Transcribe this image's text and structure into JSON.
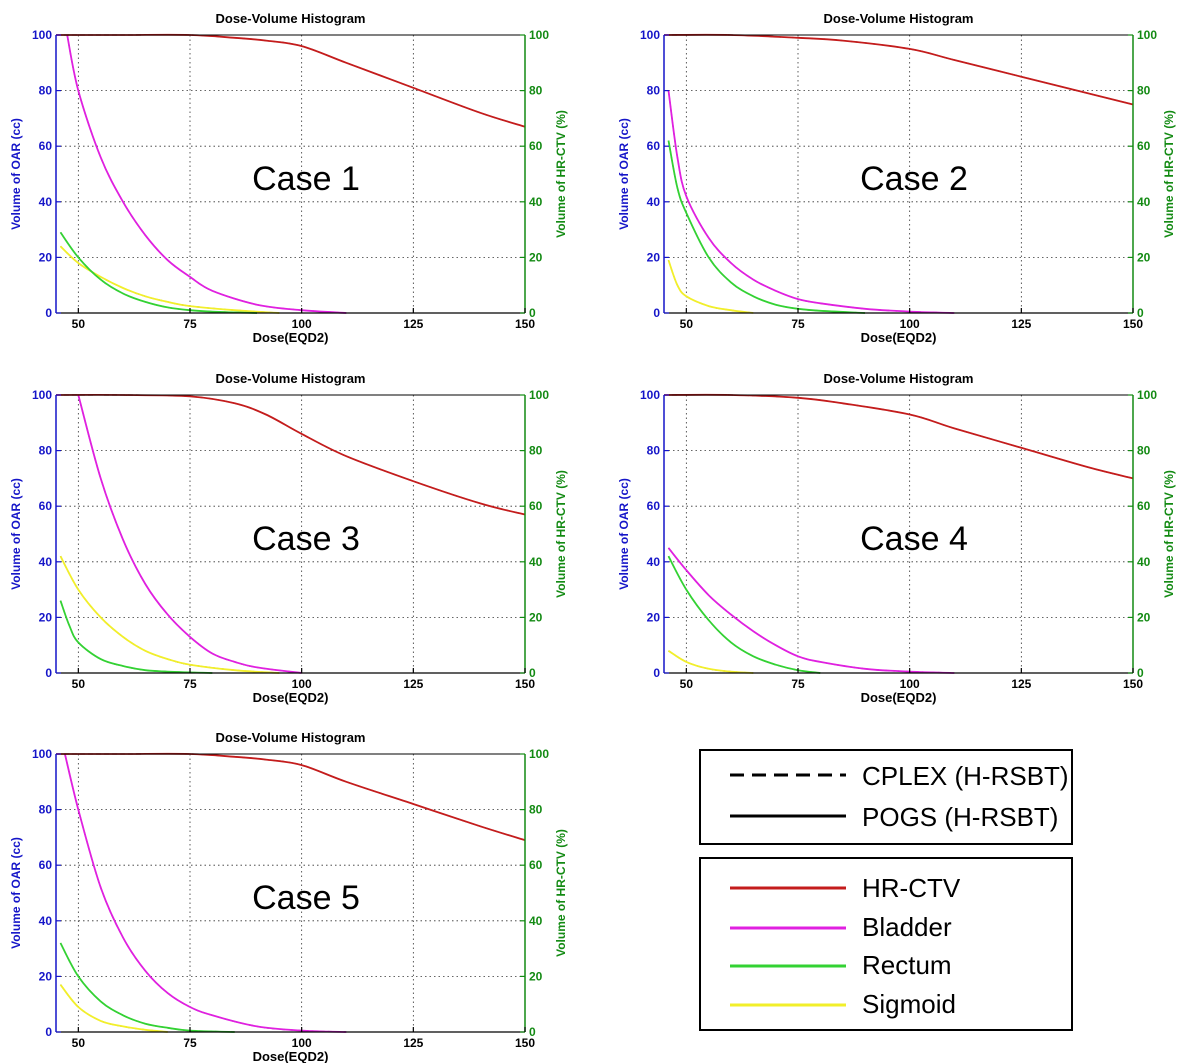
{
  "chart_data": [
    {
      "type": "line",
      "case_label": "Case 1",
      "title": "Dose-Volume Histogram",
      "xlabel": "Dose(EQD2)",
      "ylabel": "Volume of OAR (cc)",
      "ylabel_right": "Volume of HR-CTV (%)",
      "xlim": [
        45,
        150
      ],
      "ylim": [
        0,
        100
      ],
      "ylim_right": [
        0,
        100
      ],
      "xticks": [
        "50",
        "75",
        "100",
        "125",
        "150"
      ],
      "yticks": [
        "0",
        "20",
        "40",
        "60",
        "80",
        "100"
      ],
      "yticks_right": [
        "0",
        "20",
        "40",
        "60",
        "80",
        "100"
      ],
      "grid": true,
      "series": [
        {
          "name": "HR-CTV",
          "axis": "right",
          "x": [
            45,
            60,
            75,
            85,
            92,
            100,
            110,
            125,
            140,
            150
          ],
          "y": [
            100,
            100,
            100,
            99,
            98,
            96,
            90,
            81,
            72,
            67
          ]
        },
        {
          "name": "Bladder",
          "axis": "left",
          "x": [
            47.5,
            50,
            55,
            60,
            65,
            70,
            75,
            80,
            90,
            100,
            110
          ],
          "y": [
            100,
            80,
            56,
            40,
            28,
            19,
            13,
            8,
            3,
            1,
            0
          ]
        },
        {
          "name": "Rectum",
          "axis": "left",
          "x": [
            46,
            50,
            55,
            60,
            65,
            70,
            75,
            80,
            90
          ],
          "y": [
            29,
            20,
            12,
            7,
            4,
            2,
            1,
            0.5,
            0
          ]
        },
        {
          "name": "Sigmoid",
          "axis": "left",
          "x": [
            46,
            50,
            55,
            60,
            65,
            70,
            75,
            85,
            95
          ],
          "y": [
            24,
            18,
            13,
            9,
            6,
            4,
            2.5,
            1,
            0
          ]
        }
      ]
    },
    {
      "type": "line",
      "case_label": "Case 2",
      "title": "Dose-Volume Histogram",
      "xlabel": "Dose(EQD2)",
      "ylabel": "Volume of OAR (cc)",
      "ylabel_right": "Volume of HR-CTV (%)",
      "xlim": [
        45,
        150
      ],
      "ylim": [
        0,
        100
      ],
      "ylim_right": [
        0,
        100
      ],
      "xticks": [
        "50",
        "75",
        "100",
        "125",
        "150"
      ],
      "yticks": [
        "0",
        "20",
        "40",
        "60",
        "80",
        "100"
      ],
      "yticks_right": [
        "0",
        "20",
        "40",
        "60",
        "80",
        "100"
      ],
      "grid": true,
      "series": [
        {
          "name": "HR-CTV",
          "axis": "right",
          "x": [
            45,
            60,
            75,
            85,
            100,
            110,
            125,
            140,
            150
          ],
          "y": [
            100,
            100,
            99,
            98,
            95,
            91,
            85,
            79,
            75
          ]
        },
        {
          "name": "Bladder",
          "axis": "left",
          "x": [
            46,
            48,
            50,
            55,
            60,
            65,
            70,
            75,
            80,
            90,
            100,
            110
          ],
          "y": [
            80,
            56,
            42,
            27,
            18,
            12,
            8,
            5,
            3.5,
            1.5,
            0.5,
            0
          ]
        },
        {
          "name": "Rectum",
          "axis": "left",
          "x": [
            46,
            48,
            50,
            55,
            60,
            65,
            70,
            75,
            80,
            90
          ],
          "y": [
            62,
            45,
            36,
            20,
            11,
            6,
            3,
            1.5,
            0.8,
            0
          ]
        },
        {
          "name": "Sigmoid",
          "axis": "left",
          "x": [
            46,
            48,
            50,
            55,
            60,
            65
          ],
          "y": [
            19,
            10,
            6,
            2.5,
            1,
            0
          ]
        }
      ]
    },
    {
      "type": "line",
      "case_label": "Case 3",
      "title": "Dose-Volume Histogram",
      "xlabel": "Dose(EQD2)",
      "ylabel": "Volume of OAR (cc)",
      "ylabel_right": "Volume of HR-CTV (%)",
      "xlim": [
        45,
        150
      ],
      "ylim": [
        0,
        100
      ],
      "ylim_right": [
        0,
        100
      ],
      "xticks": [
        "50",
        "75",
        "100",
        "125",
        "150"
      ],
      "yticks": [
        "0",
        "20",
        "40",
        "60",
        "80",
        "100"
      ],
      "yticks_right": [
        "0",
        "20",
        "40",
        "60",
        "80",
        "100"
      ],
      "grid": true,
      "series": [
        {
          "name": "HR-CTV",
          "axis": "right",
          "x": [
            45,
            60,
            75,
            85,
            92,
            100,
            110,
            125,
            140,
            150
          ],
          "y": [
            100,
            100,
            99.5,
            97,
            93,
            86,
            78,
            69,
            61,
            57
          ]
        },
        {
          "name": "Bladder",
          "axis": "left",
          "x": [
            50,
            55,
            60,
            65,
            70,
            75,
            80,
            85,
            90,
            100
          ],
          "y": [
            100,
            70,
            48,
            32,
            21,
            13,
            7,
            4,
            2,
            0
          ]
        },
        {
          "name": "Rectum",
          "axis": "left",
          "x": [
            46,
            48,
            50,
            55,
            60,
            65,
            70,
            80
          ],
          "y": [
            26,
            17,
            11,
            5,
            2.5,
            1,
            0.5,
            0
          ]
        },
        {
          "name": "Sigmoid",
          "axis": "left",
          "x": [
            46,
            50,
            55,
            60,
            65,
            70,
            75,
            85,
            95
          ],
          "y": [
            42,
            30,
            20,
            13,
            8,
            5,
            3,
            1,
            0
          ]
        }
      ]
    },
    {
      "type": "line",
      "case_label": "Case 4",
      "title": "Dose-Volume Histogram",
      "xlabel": "Dose(EQD2)",
      "ylabel": "Volume of OAR (cc)",
      "ylabel_right": "Volume of HR-CTV (%)",
      "xlim": [
        45,
        150
      ],
      "ylim": [
        0,
        100
      ],
      "ylim_right": [
        0,
        100
      ],
      "xticks": [
        "50",
        "75",
        "100",
        "125",
        "150"
      ],
      "yticks": [
        "0",
        "20",
        "40",
        "60",
        "80",
        "100"
      ],
      "yticks_right": [
        "0",
        "20",
        "40",
        "60",
        "80",
        "100"
      ],
      "grid": true,
      "series": [
        {
          "name": "HR-CTV",
          "axis": "right",
          "x": [
            45,
            60,
            75,
            85,
            100,
            110,
            125,
            140,
            150
          ],
          "y": [
            100,
            100,
            99,
            97,
            93,
            88,
            81,
            74,
            70
          ]
        },
        {
          "name": "Bladder",
          "axis": "left",
          "x": [
            46,
            50,
            55,
            60,
            65,
            70,
            75,
            80,
            90,
            100,
            110
          ],
          "y": [
            45,
            37,
            28,
            21,
            15,
            10,
            6,
            4,
            1.5,
            0.5,
            0
          ]
        },
        {
          "name": "Rectum",
          "axis": "left",
          "x": [
            46,
            50,
            55,
            60,
            65,
            70,
            75,
            80
          ],
          "y": [
            42,
            30,
            19,
            11,
            6,
            3,
            1,
            0
          ]
        },
        {
          "name": "Sigmoid",
          "axis": "left",
          "x": [
            46,
            50,
            55,
            60,
            65
          ],
          "y": [
            8,
            4,
            1.5,
            0.5,
            0
          ]
        }
      ]
    },
    {
      "type": "line",
      "case_label": "Case 5",
      "title": "Dose-Volume Histogram",
      "xlabel": "Dose(EQD2)",
      "ylabel": "Volume of OAR (cc)",
      "ylabel_right": "Volume of HR-CTV (%)",
      "xlim": [
        45,
        150
      ],
      "ylim": [
        0,
        100
      ],
      "ylim_right": [
        0,
        100
      ],
      "xticks": [
        "50",
        "75",
        "100",
        "125",
        "150"
      ],
      "yticks": [
        "0",
        "20",
        "40",
        "60",
        "80",
        "100"
      ],
      "yticks_right": [
        "0",
        "20",
        "40",
        "60",
        "80",
        "100"
      ],
      "grid": true,
      "series": [
        {
          "name": "HR-CTV",
          "axis": "right",
          "x": [
            45,
            60,
            75,
            85,
            92,
            100,
            110,
            125,
            140,
            150
          ],
          "y": [
            100,
            100,
            100,
            99,
            98,
            96,
            90,
            82,
            74,
            69
          ]
        },
        {
          "name": "Bladder",
          "axis": "left",
          "x": [
            47,
            50,
            55,
            60,
            65,
            70,
            75,
            80,
            90,
            100,
            110
          ],
          "y": [
            100,
            80,
            52,
            34,
            22,
            14,
            9,
            6,
            2,
            0.5,
            0
          ]
        },
        {
          "name": "Rectum",
          "axis": "left",
          "x": [
            46,
            50,
            55,
            60,
            65,
            70,
            75,
            85
          ],
          "y": [
            32,
            20,
            11,
            6,
            3,
            1.5,
            0.5,
            0
          ]
        },
        {
          "name": "Sigmoid",
          "axis": "left",
          "x": [
            46,
            50,
            55,
            60,
            65,
            70
          ],
          "y": [
            17,
            9,
            4,
            2,
            0.8,
            0
          ]
        }
      ]
    }
  ],
  "legend": {
    "methods": [
      {
        "label": "CPLEX (H-RSBT)",
        "style": "dashed"
      },
      {
        "label": "POGS (H-RSBT)",
        "style": "solid"
      }
    ],
    "structures": [
      {
        "label": "HR-CTV",
        "color": "#c41c1c"
      },
      {
        "label": "Bladder",
        "color": "#e020e0"
      },
      {
        "label": "Rectum",
        "color": "#33d233"
      },
      {
        "label": "Sigmoid",
        "color": "#f2ef2a"
      }
    ]
  },
  "colors": {
    "HR-CTV": "#c41c1c",
    "Bladder": "#e020e0",
    "Rectum": "#33d233",
    "Sigmoid": "#f2ef2a",
    "left_axis": "#1515c8",
    "right_axis": "#138a13"
  }
}
